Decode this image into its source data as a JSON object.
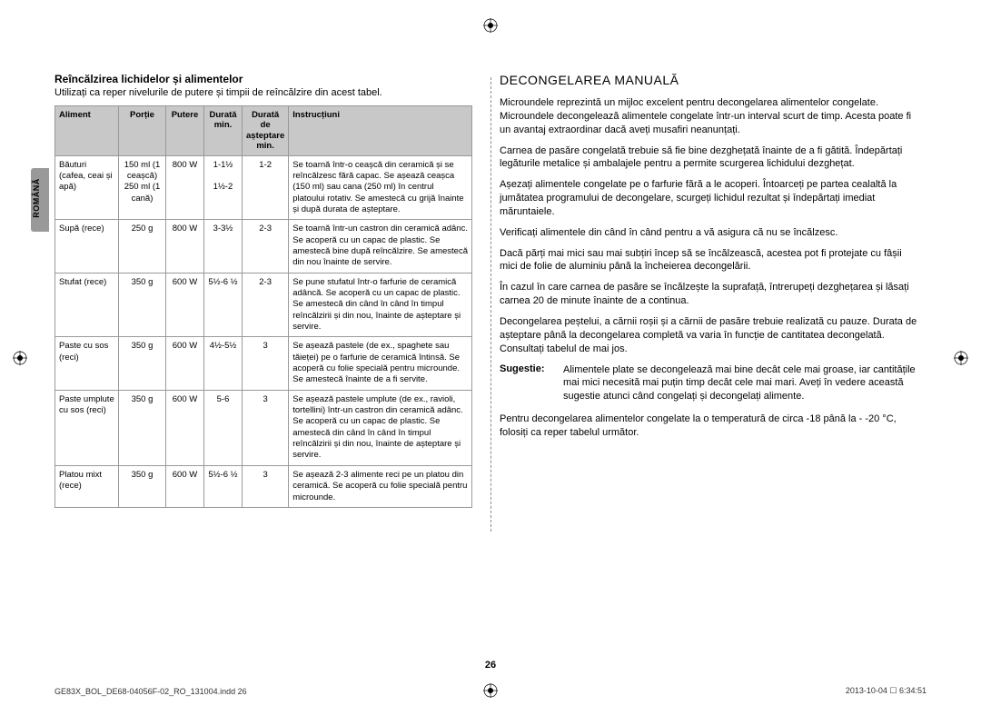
{
  "sideTab": "ROMÂNĂ",
  "left": {
    "title": "Reîncălzirea lichidelor și alimentelor",
    "intro": "Utilizați ca reper nivelurile de putere și timpii de reîncălzire din acest tabel.",
    "headers": {
      "aliment": "Aliment",
      "portie": "Porție",
      "putere": "Putere",
      "durata": "Durată min.",
      "asteptare": "Durată de așteptare min.",
      "instr": "Instrucțiuni"
    },
    "rows": [
      {
        "aliment": "Băuturi (cafea, ceai și apă)",
        "portie": "150 ml (1 ceașcă) 250 ml (1 cană)",
        "putere": "800 W",
        "durata": "1-1½\n\n1½-2",
        "astept": "1-2",
        "instr": "Se toarnă într-o ceașcă din ceramică și se reîncălzesc fără capac. Se așează ceașca (150 ml) sau cana (250 ml) în centrul platoului rotativ. Se amestecă cu grijă înainte și după durata de așteptare."
      },
      {
        "aliment": "Supă (rece)",
        "portie": "250 g",
        "putere": "800 W",
        "durata": "3-3½",
        "astept": "2-3",
        "instr": "Se toarnă într-un castron din ceramică adânc. Se acoperă cu un capac de plastic. Se amestecă bine după reîncălzire. Se amestecă din nou înainte de servire."
      },
      {
        "aliment": "Stufat (rece)",
        "portie": "350 g",
        "putere": "600 W",
        "durata": "5½-6 ½",
        "astept": "2-3",
        "instr": "Se pune stufatul într-o farfurie de ceramică adâncă. Se acoperă cu un capac de plastic. Se amestecă din când în când în timpul reîncălzirii și din nou, înainte de așteptare și servire."
      },
      {
        "aliment": "Paste cu sos (reci)",
        "portie": "350 g",
        "putere": "600 W",
        "durata": "4½-5½",
        "astept": "3",
        "instr": "Se așează pastele (de ex., spaghete sau tăieței) pe o farfurie de ceramică întinsă. Se acoperă cu folie specială pentru microunde. Se amestecă înainte de a fi servite."
      },
      {
        "aliment": "Paste umplute cu sos (reci)",
        "portie": "350 g",
        "putere": "600 W",
        "durata": "5-6",
        "astept": "3",
        "instr": "Se așează pastele umplute (de ex., ravioli, tortellini) într-un castron din ceramică adânc. Se acoperă cu un capac de plastic. Se amestecă din când în când în timpul reîncălzirii și din nou, înainte de așteptare și servire."
      },
      {
        "aliment": "Platou mixt (rece)",
        "portie": "350 g",
        "putere": "600 W",
        "durata": "5½-6 ½",
        "astept": "3",
        "instr": "Se așează 2-3 alimente reci pe un platou din ceramică. Se acoperă cu folie specială pentru microunde."
      }
    ]
  },
  "right": {
    "title": "DECONGELAREA MANUALĂ",
    "paras": [
      "Microundele reprezintă un mijloc excelent pentru decongelarea alimentelor congelate. Microundele decongelează alimentele congelate într-un interval scurt de timp. Acesta poate fi un avantaj extraordinar dacă aveți musafiri neanunțați.",
      "Carnea de pasăre congelată trebuie să fie bine dezghețată înainte de a fi gătită. Îndepărtați legăturile metalice și ambalajele pentru a permite scurgerea lichidului dezghețat.",
      "Așezați alimentele congelate pe o farfurie fără a le acoperi. Întoarceți pe partea cealaltă la jumătatea programului de decongelare, scurgeți lichidul rezultat și îndepărtați imediat măruntaiele.",
      "Verificați alimentele din când în când pentru a vă asigura că nu se încălzesc.",
      "Dacă părți mai mici sau mai subțiri încep să se încălzească, acestea pot fi protejate cu fâșii mici de folie de aluminiu până la încheierea decongelării.",
      "În cazul în care carnea de pasăre se încălzește la suprafață, întrerupeți dezghețarea și lăsați carnea 20 de minute înainte de a continua.",
      "Decongelarea peștelui, a cărnii roșii și a cărnii de pasăre trebuie realizată cu pauze. Durata de așteptare până la decongelarea completă va varia în funcție de cantitatea decongelată. Consultați tabelul de mai jos."
    ],
    "sugestie_label": "Sugestie:",
    "sugestie_text": "Alimentele plate se decongelează mai bine decât cele mai groase, iar cantitățile mai mici necesită mai puțin timp decât cele mai mari. Aveți în vedere această sugestie atunci când congelați și decongelați alimente.",
    "last": "Pentru decongelarea alimentelor congelate la o temperatură de circa -18 până la - -20 °C, folosiți ca reper tabelul următor."
  },
  "pageNum": "26",
  "footerLeft": "GE83X_BOL_DE68-04056F-02_RO_131004.indd   26",
  "footerRight": "2013-10-04   ☐ 6:34:51",
  "colors": {
    "header_bg": "#c8c8c8",
    "border": "#999999",
    "sidetab": "#999999"
  }
}
